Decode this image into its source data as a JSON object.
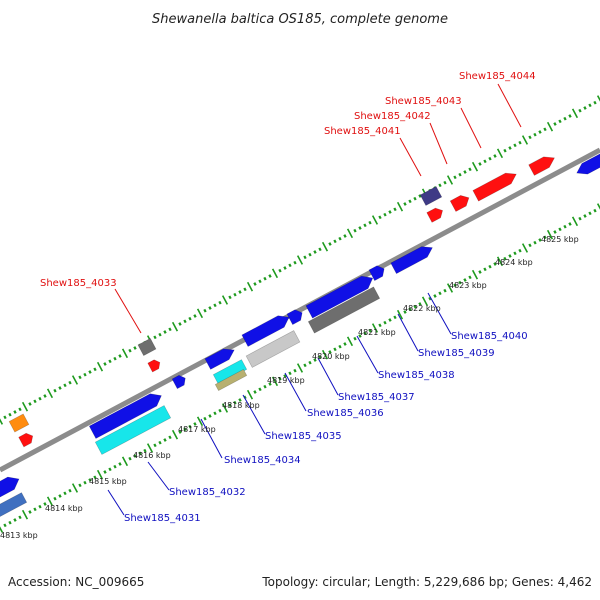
{
  "title": "Shewanella baltica OS185, complete genome",
  "footer": {
    "accession": "Accession: NC_009665",
    "summary": "Topology: circular; Length: 5,229,686 bp; Genes: 4,462"
  },
  "colors": {
    "backbone": "#8c8c8c",
    "tick": "#1e9a1e",
    "gene_red": "#ff1010",
    "gene_blue": "#1010e6",
    "gene_cyan": "#17e6ea",
    "gene_darkgray": "#6e6e6e",
    "gene_lightgray": "#c8c8c8",
    "gene_navy": "#3e3a86",
    "gene_orange": "#ff8c10",
    "label_red": "#e01010",
    "label_blue": "#1010c0"
  },
  "scale_labels": [
    "4813 kbp",
    "4814 kbp",
    "4815 kbp",
    "4816 kbp",
    "4817 kbp",
    "4818 kbp",
    "4819 kbp",
    "4820 kbp",
    "4821 kbp",
    "4822 kbp",
    "4823 kbp",
    "4824 kbp",
    "4825 kbp"
  ],
  "gene_labels_top": [
    "Shew185_4033",
    "Shew185_4041",
    "Shew185_4042",
    "Shew185_4043",
    "Shew185_4044"
  ],
  "gene_labels_bottom": [
    "Shew185_4031",
    "Shew185_4032",
    "Shew185_4034",
    "Shew185_4035",
    "Shew185_4036",
    "Shew185_4037",
    "Shew185_4038",
    "Shew185_4039",
    "Shew185_4040"
  ]
}
